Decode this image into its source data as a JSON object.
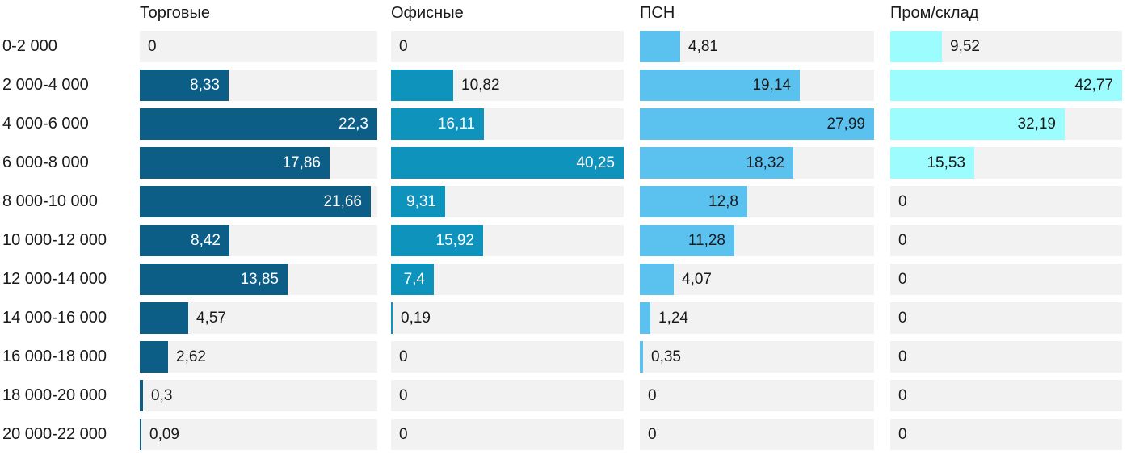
{
  "chart_data": {
    "type": "bar",
    "orientation": "horizontal",
    "title": "",
    "xlabel": "",
    "ylabel": "",
    "grid": false,
    "legend_position": "column-headers-top",
    "track_color": "#f2f2f2",
    "text_color": "#1a1a1a",
    "categories": [
      "0-2 000",
      "2 000-4 000",
      "4 000-6 000",
      "6 000-8 000",
      "8 000-10 000",
      "10 000-12 000",
      "12 000-14 000",
      "14 000-16 000",
      "16 000-18 000",
      "18 000-20 000",
      "20 000-22 000"
    ],
    "series": [
      {
        "name": "Торговые",
        "color": "#0c5e87",
        "inside_label_color": "#ffffff",
        "axis_max": 22.3,
        "values": [
          0,
          8.33,
          22.3,
          17.86,
          21.66,
          8.42,
          13.85,
          4.57,
          2.62,
          0.3,
          0.09
        ],
        "labels": [
          "0",
          "8,33",
          "22,3",
          "17,86",
          "21,66",
          "8,42",
          "13,85",
          "4,57",
          "2,62",
          "0,3",
          "0,09"
        ],
        "label_inside": [
          false,
          true,
          true,
          true,
          true,
          true,
          true,
          false,
          false,
          false,
          false
        ]
      },
      {
        "name": "Офисные",
        "color": "#0e93bd",
        "inside_label_color": "#ffffff",
        "axis_max": 40.25,
        "values": [
          0,
          10.82,
          16.11,
          40.25,
          9.31,
          15.92,
          7.4,
          0.19,
          0,
          0,
          0
        ],
        "labels": [
          "0",
          "10,82",
          "16,11",
          "40,25",
          "9,31",
          "15,92",
          "7,4",
          "0,19",
          "0",
          "0",
          "0"
        ],
        "label_inside": [
          false,
          false,
          true,
          true,
          true,
          true,
          true,
          false,
          false,
          false,
          false
        ]
      },
      {
        "name": "ПСН",
        "color": "#5bc2f0",
        "inside_label_color": "#1a1a1a",
        "axis_max": 27.99,
        "values": [
          4.81,
          19.14,
          27.99,
          18.32,
          12.8,
          11.28,
          4.07,
          1.24,
          0.35,
          0,
          0
        ],
        "labels": [
          "4,81",
          "19,14",
          "27,99",
          "18,32",
          "12,8",
          "11,28",
          "4,07",
          "1,24",
          "0,35",
          "0",
          "0"
        ],
        "label_inside": [
          false,
          true,
          true,
          true,
          true,
          true,
          false,
          false,
          false,
          false,
          false
        ]
      },
      {
        "name": "Пром/склад",
        "color": "#9dfcfd",
        "inside_label_color": "#1a1a1a",
        "axis_max": 42.77,
        "values": [
          9.52,
          42.77,
          32.19,
          15.53,
          0,
          0,
          0,
          0,
          0,
          0,
          0
        ],
        "labels": [
          "9,52",
          "42,77",
          "32,19",
          "15,53",
          "0",
          "0",
          "0",
          "0",
          "0",
          "0",
          "0"
        ],
        "label_inside": [
          false,
          true,
          true,
          true,
          false,
          false,
          false,
          false,
          false,
          false,
          false
        ]
      }
    ]
  }
}
